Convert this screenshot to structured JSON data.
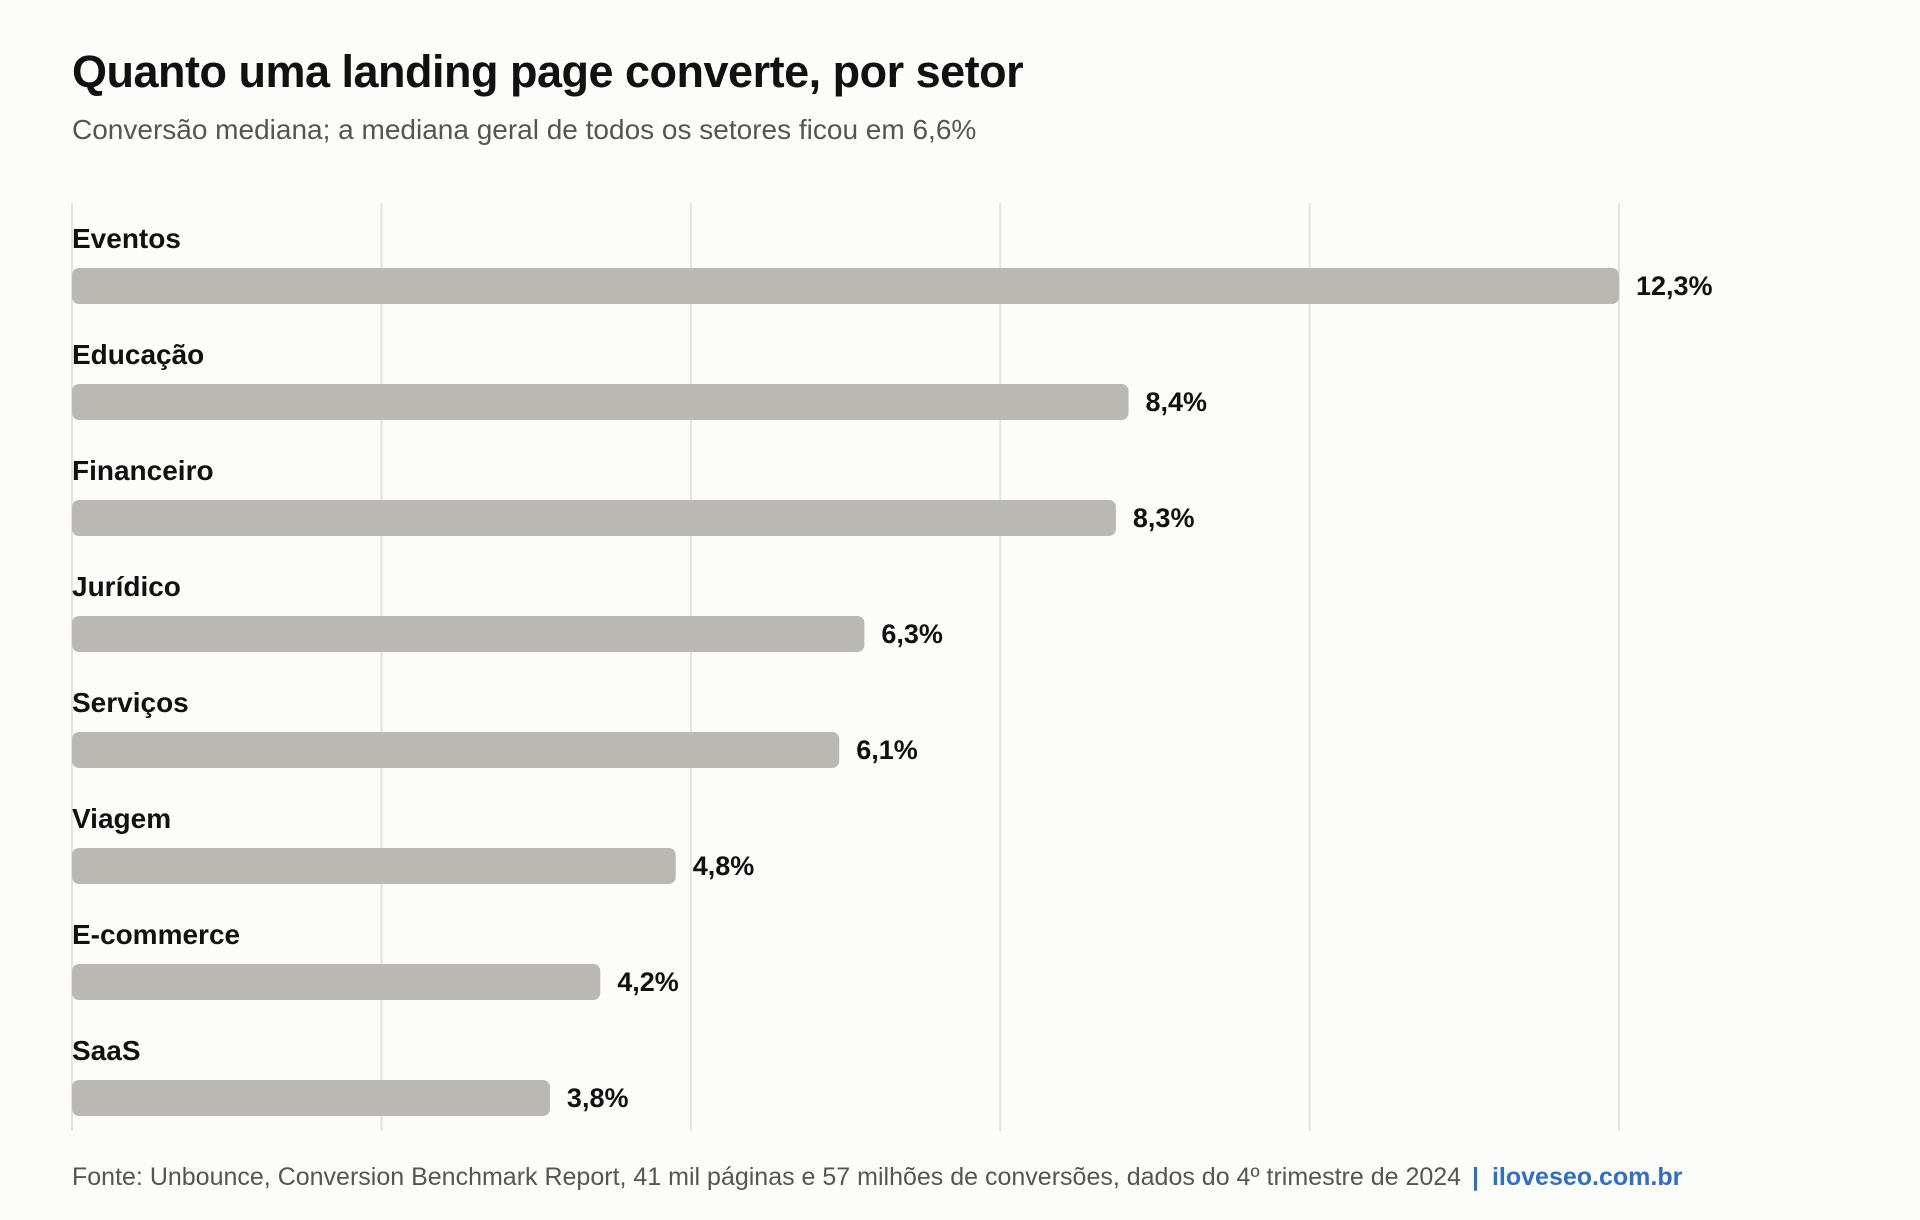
{
  "header": {
    "title": "Quanto uma landing page converte, por setor",
    "subtitle": "Conversão mediana; a mediana geral de todos os setores ficou em 6,6%"
  },
  "footer": {
    "source": "Fonte: Unbounce, Conversion Benchmark Report, 41 mil páginas e 57 milhões de conversões, dados do 4º trimestre de 2024",
    "separator": "|",
    "brand": "iloveseo.com.br"
  },
  "colors": {
    "bar": "#b9b8b2",
    "grid": "#e3e3e0",
    "label": "#111111",
    "brand": "#2f6fc6"
  },
  "chart_data": {
    "type": "bar",
    "orientation": "horizontal",
    "title": "Quanto uma landing page converte, por setor",
    "subtitle": "Conversão mediana; a mediana geral de todos os setores ficou em 6,6%",
    "categories": [
      "Eventos",
      "Educação",
      "Financeiro",
      "Jurídico",
      "Serviços",
      "Viagem",
      "E-commerce",
      "SaaS"
    ],
    "values": [
      12.3,
      8.4,
      8.3,
      6.3,
      6.1,
      4.8,
      4.2,
      3.8
    ],
    "value_labels": [
      "12,3%",
      "8,4%",
      "8,3%",
      "6,3%",
      "6,1%",
      "4,8%",
      "4,2%",
      "3,8%"
    ],
    "unit": "%",
    "xlim": [
      0,
      12.3
    ],
    "gridlines": [
      0,
      2.46,
      4.92,
      7.38,
      9.84,
      12.3
    ],
    "grid": true,
    "legend": "none"
  }
}
